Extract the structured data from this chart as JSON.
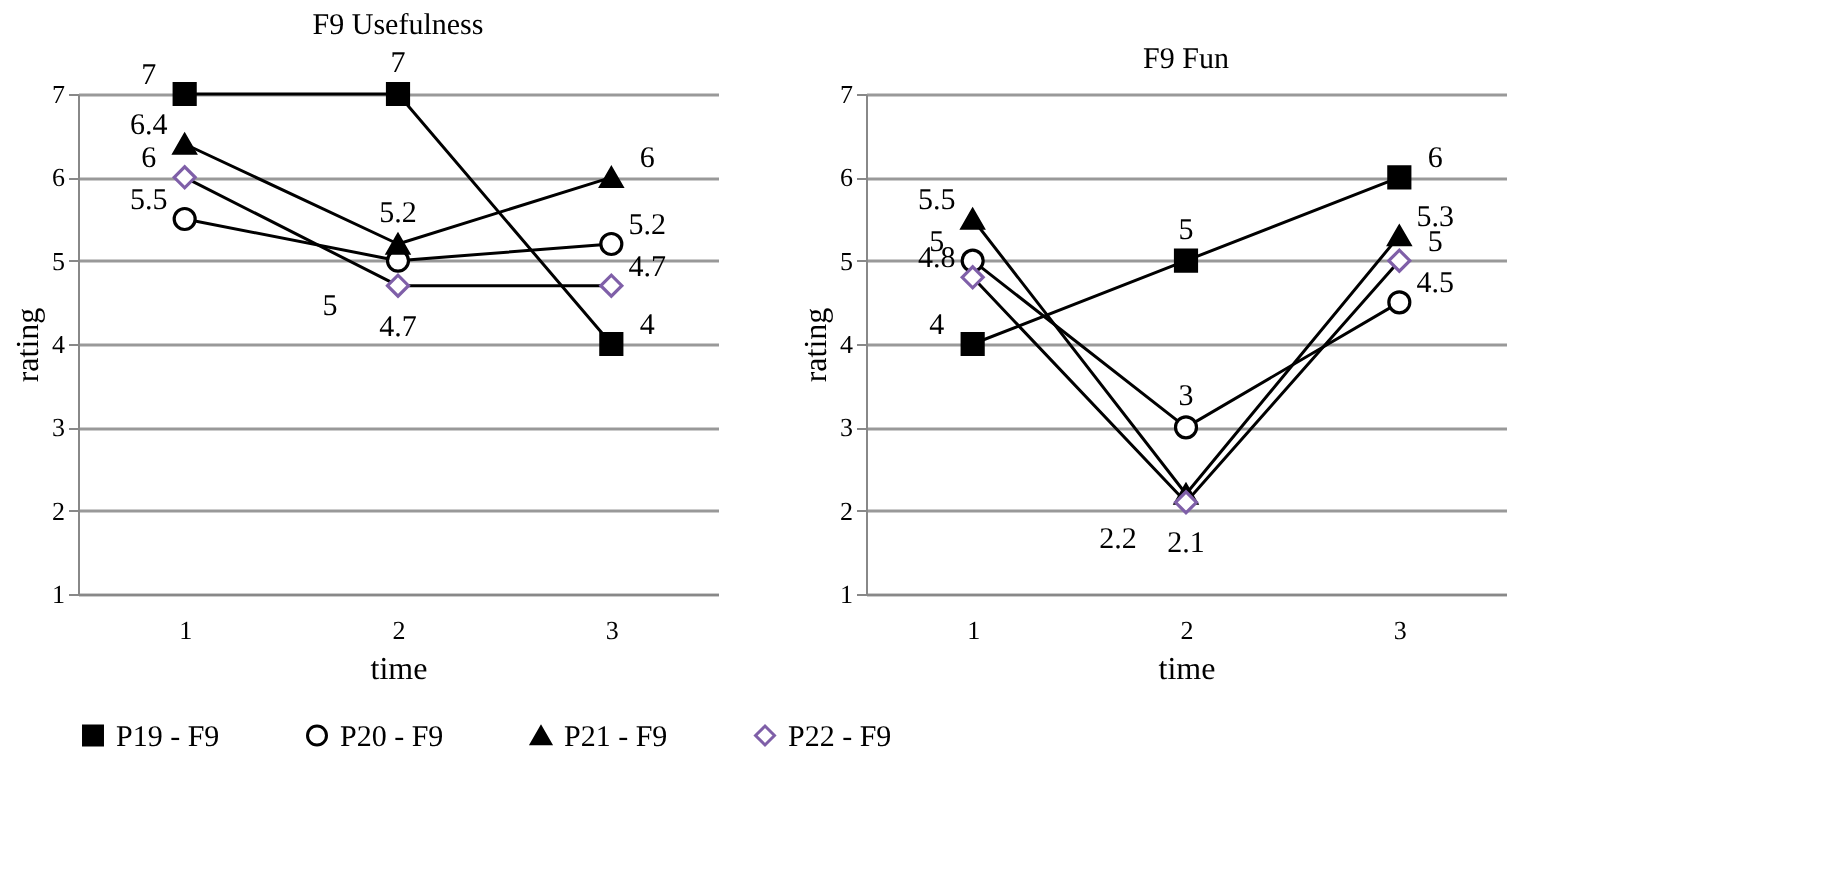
{
  "chart_data": [
    {
      "type": "line",
      "title": "F9 Usefulness",
      "xlabel": "time",
      "ylabel": "rating",
      "categories": [
        "1",
        "2",
        "3"
      ],
      "ylim": [
        1,
        7
      ],
      "yticks": [
        1,
        2,
        3,
        4,
        5,
        6,
        7
      ],
      "grid": "y",
      "data_labels": true,
      "legend": "bottom",
      "series": [
        {
          "name": "P19 - F9",
          "color": "#000000",
          "marker": "square",
          "values": [
            7,
            7,
            4
          ]
        },
        {
          "name": "P20 - F9",
          "color": "#000000",
          "marker": "circle",
          "values": [
            5.5,
            5,
            5.2
          ]
        },
        {
          "name": "P21 - F9",
          "color": "#000000",
          "marker": "triangle",
          "values": [
            6.4,
            5.2,
            6
          ]
        },
        {
          "name": "P22 - F9",
          "color": "#7f5fa8",
          "marker": "diamond",
          "values": [
            6,
            4.7,
            4.7
          ]
        }
      ]
    },
    {
      "type": "line",
      "title": "F9 Fun",
      "xlabel": "time",
      "ylabel": "rating",
      "categories": [
        "1",
        "2",
        "3"
      ],
      "ylim": [
        1,
        7
      ],
      "yticks": [
        1,
        2,
        3,
        4,
        5,
        6,
        7
      ],
      "grid": "y",
      "data_labels": true,
      "legend": "bottom",
      "series": [
        {
          "name": "P19 - F9",
          "color": "#000000",
          "marker": "square",
          "values": [
            4,
            5,
            6
          ]
        },
        {
          "name": "P20 - F9",
          "color": "#000000",
          "marker": "circle",
          "values": [
            5,
            3,
            4.5
          ]
        },
        {
          "name": "P21 - F9",
          "color": "#000000",
          "marker": "triangle",
          "values": [
            5.5,
            2.2,
            5.3
          ]
        },
        {
          "name": "P22 - F9",
          "color": "#000000",
          "marker": "diamond",
          "values": [
            4.8,
            2.1,
            5
          ]
        }
      ]
    }
  ]
}
